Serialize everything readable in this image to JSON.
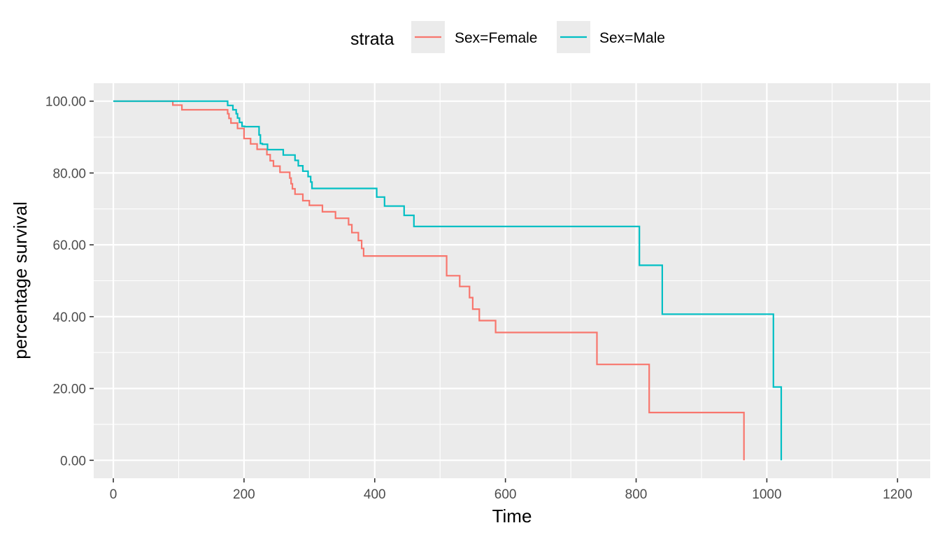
{
  "chart_data": {
    "type": "line",
    "step": true,
    "xlabel": "Time",
    "ylabel": "percentage survival",
    "xlim": [
      -30,
      1250
    ],
    "ylim": [
      -5,
      105
    ],
    "x_ticks": [
      0,
      200,
      400,
      600,
      800,
      1000,
      1200
    ],
    "x_tick_labels": [
      "0",
      "200",
      "400",
      "600",
      "800",
      "1000",
      "1200"
    ],
    "y_ticks": [
      0,
      20,
      40,
      60,
      80,
      100
    ],
    "y_tick_labels": [
      "0.00",
      "20.00",
      "40.00",
      "60.00",
      "80.00",
      "100.00"
    ],
    "grid": true,
    "legend": {
      "title": "strata",
      "position": "top",
      "entries": [
        "Sex=Female",
        "Sex=Male"
      ]
    },
    "series": [
      {
        "name": "Sex=Female",
        "color": "#F8766D",
        "x": [
          0,
          91,
          105,
          175,
          177,
          180,
          190,
          200,
          210,
          220,
          235,
          240,
          245,
          255,
          270,
          272,
          274,
          278,
          290,
          300,
          320,
          340,
          360,
          365,
          375,
          380,
          383,
          510,
          530,
          545,
          550,
          560,
          585,
          740,
          820,
          965,
          965
        ],
        "y": [
          100,
          98.9,
          97.6,
          96.5,
          95.2,
          93.9,
          92.4,
          89.6,
          88.1,
          86.6,
          85.1,
          83.4,
          81.9,
          80.2,
          78.6,
          77.0,
          75.6,
          74.1,
          72.3,
          71.0,
          69.2,
          67.4,
          65.6,
          63.4,
          61.2,
          59.0,
          56.9,
          51.4,
          48.4,
          45.3,
          42.1,
          38.9,
          35.6,
          26.7,
          13.3,
          13.3,
          0
        ],
        "censored_at_end": false
      },
      {
        "name": "Sex=Male",
        "color": "#00BFC4",
        "x": [
          0,
          175,
          183,
          188,
          190,
          193,
          197,
          201,
          223,
          225,
          228,
          236,
          260,
          278,
          283,
          290,
          298,
          302,
          304,
          403,
          415,
          445,
          460,
          805,
          840,
          1010,
          1022,
          1022
        ],
        "y": [
          100,
          98.8,
          97.6,
          96.5,
          95.3,
          94.1,
          93.0,
          92.9,
          90.6,
          88.2,
          88.0,
          86.5,
          85.0,
          83.5,
          82.0,
          80.5,
          79.0,
          77.5,
          75.7,
          73.3,
          70.8,
          68.2,
          65.1,
          54.3,
          40.7,
          20.4,
          20.4,
          0
        ],
        "censored_at_end": false
      }
    ]
  }
}
